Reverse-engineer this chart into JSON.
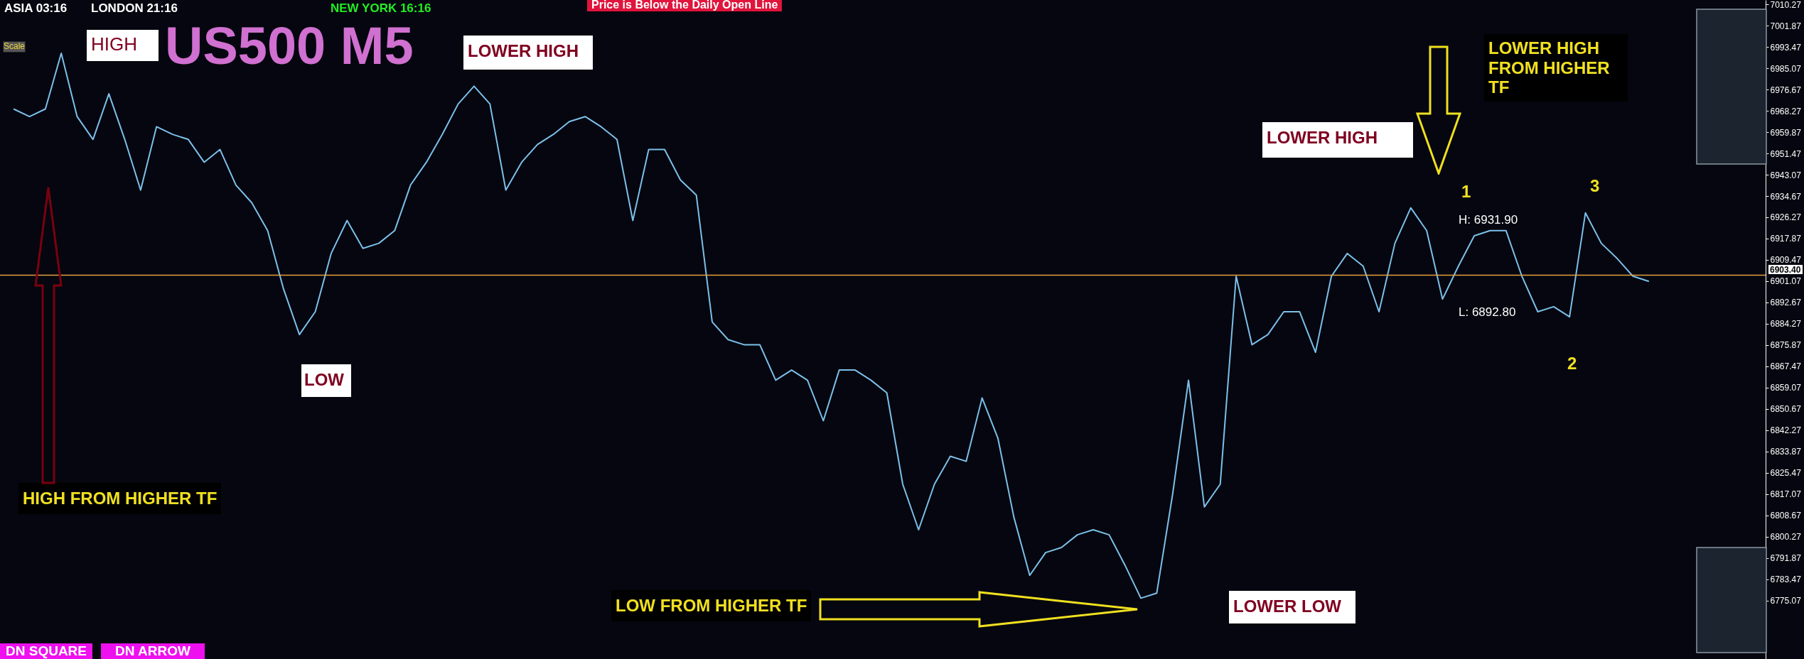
{
  "chart_data": {
    "type": "line",
    "title": "US500 M5",
    "categories": [
      null,
      null,
      null,
      null,
      null,
      null,
      null,
      null,
      null,
      null,
      null,
      null,
      null,
      null,
      null,
      null,
      null,
      null,
      null,
      null,
      null,
      null,
      null,
      null,
      null,
      null,
      null,
      null,
      null,
      null,
      null,
      null,
      null,
      null,
      null,
      null,
      null,
      null,
      null,
      null,
      null,
      null,
      null,
      null,
      null,
      null,
      null,
      null,
      null,
      null,
      null,
      null,
      null,
      null,
      null,
      null,
      null,
      null,
      null,
      null,
      null,
      null,
      null,
      null,
      null,
      null,
      null,
      null,
      null,
      null,
      null,
      null,
      null,
      null,
      null,
      null,
      null,
      null,
      null,
      null,
      null,
      null,
      null,
      null,
      null,
      null,
      null,
      null,
      null,
      null,
      null,
      null,
      null,
      null,
      null,
      null,
      null,
      null,
      null,
      null,
      null,
      null,
      null,
      null
    ],
    "series": [
      {
        "color": "#7cc0ea",
        "values": [
          6969,
          6966,
          6969,
          6991,
          6966,
          6957,
          6975,
          6957,
          6937,
          6962,
          6959,
          6957,
          6948,
          6953,
          6939,
          6932,
          6921,
          6898,
          6880,
          6889,
          6912,
          6925,
          6914,
          6916,
          6921,
          6939,
          6948,
          6959,
          6971,
          6978,
          6971,
          6937,
          6948,
          6955,
          6959,
          6964,
          6966,
          6962,
          6957,
          6925,
          6953,
          6953,
          6941,
          6935,
          6885,
          6878,
          6876,
          6876,
          6862,
          6866,
          6862,
          6846,
          6866,
          6866,
          6862,
          6857,
          6821,
          6803,
          6821,
          6832,
          6830,
          6855,
          6839,
          6808,
          6785,
          6794,
          6796,
          6801,
          6803,
          6801,
          6789,
          6776,
          6778,
          6817,
          6862,
          6812,
          6821,
          6903,
          6876,
          6880,
          6889,
          6889,
          6873,
          6903,
          6912,
          6907,
          6889,
          6916,
          6930,
          6921,
          6894,
          6907,
          6919,
          6921,
          6921,
          6903,
          6889,
          6891,
          6887,
          6928,
          6916,
          6910,
          6903,
          6901
        ]
      }
    ],
    "ylim": [
      6752,
      7012
    ],
    "yticks": [
      7010.27,
      7001.87,
      6993.47,
      6985.07,
      6976.67,
      6968.27,
      6959.87,
      6951.47,
      6943.07,
      6934.67,
      6926.27,
      6917.87,
      6909.47,
      6901.07,
      6892.67,
      6884.27,
      6875.87,
      6867.47,
      6859.07,
      6850.67,
      6842.27,
      6833.87,
      6825.47,
      6817.07,
      6808.67,
      6800.27,
      6791.87,
      6783.47,
      6775.07
    ],
    "ref_lines": [
      {
        "axis": "y",
        "value": 6903.4,
        "label": "6903.40",
        "color": "#e8a040"
      }
    ],
    "annotations": [
      "ASIA 03:16",
      "LONDON 21:16",
      "NEW YORK 16:16",
      "Price is Below the Daily Open Line",
      "Scale",
      "HIGH",
      "LOWER HIGH",
      "LOW",
      "HIGH FROM HIGHER TF",
      "LOW FROM HIGHER TF",
      "LOWER LOW",
      "LOWER HIGH",
      "LOWER HIGH FROM HIGHER TF",
      "1",
      "2",
      "3",
      "H: 6931.90",
      "L: 6892.80",
      "DN SQUARE",
      "DN ARROW"
    ],
    "grid": false,
    "marker": "none",
    "line_style": "solid"
  }
}
